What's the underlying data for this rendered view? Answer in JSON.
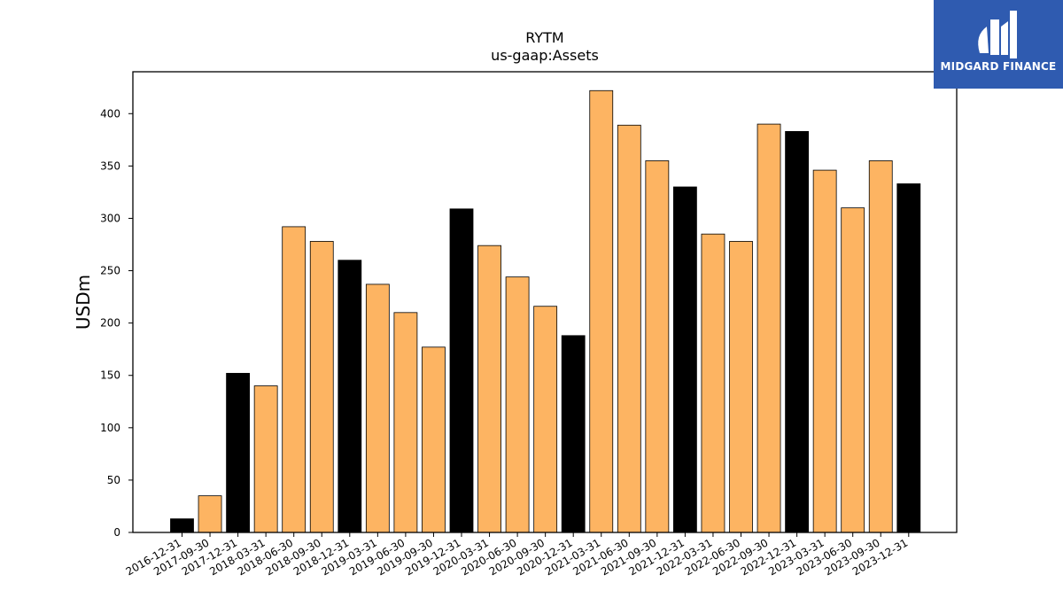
{
  "chart_data": {
    "type": "bar",
    "title": "RYTM",
    "subtitle": "us-gaap:Assets",
    "xlabel": "",
    "ylabel": "USDm",
    "ylim": [
      0,
      440
    ],
    "yticks": [
      0,
      50,
      100,
      150,
      200,
      250,
      300,
      350,
      400
    ],
    "grid": false,
    "categories": [
      "2016-12-31",
      "2017-09-30",
      "2017-12-31",
      "2018-03-31",
      "2018-06-30",
      "2018-09-30",
      "2018-12-31",
      "2019-03-31",
      "2019-06-30",
      "2019-09-30",
      "2019-12-31",
      "2020-03-31",
      "2020-06-30",
      "2020-09-30",
      "2020-12-31",
      "2021-03-31",
      "2021-06-30",
      "2021-09-30",
      "2021-12-31",
      "2022-03-31",
      "2022-06-30",
      "2022-09-30",
      "2022-12-31",
      "2023-03-31",
      "2023-06-30",
      "2023-09-30",
      "2023-12-31"
    ],
    "values": [
      13,
      35,
      152,
      140,
      292,
      278,
      260,
      237,
      210,
      177,
      309,
      274,
      244,
      216,
      188,
      422,
      389,
      355,
      330,
      285,
      278,
      390,
      383,
      346,
      310,
      355,
      333
    ],
    "colors": {
      "annual": "#000000",
      "quarterly": "#fdb462",
      "edge": "#000000"
    },
    "bar_kind": [
      "annual",
      "quarterly",
      "annual",
      "quarterly",
      "quarterly",
      "quarterly",
      "annual",
      "quarterly",
      "quarterly",
      "quarterly",
      "annual",
      "quarterly",
      "quarterly",
      "quarterly",
      "annual",
      "quarterly",
      "quarterly",
      "quarterly",
      "annual",
      "quarterly",
      "quarterly",
      "quarterly",
      "annual",
      "quarterly",
      "quarterly",
      "quarterly",
      "annual"
    ]
  },
  "logo": {
    "text": "MIDGARD FINANCE",
    "background": "#2f5bb0"
  }
}
